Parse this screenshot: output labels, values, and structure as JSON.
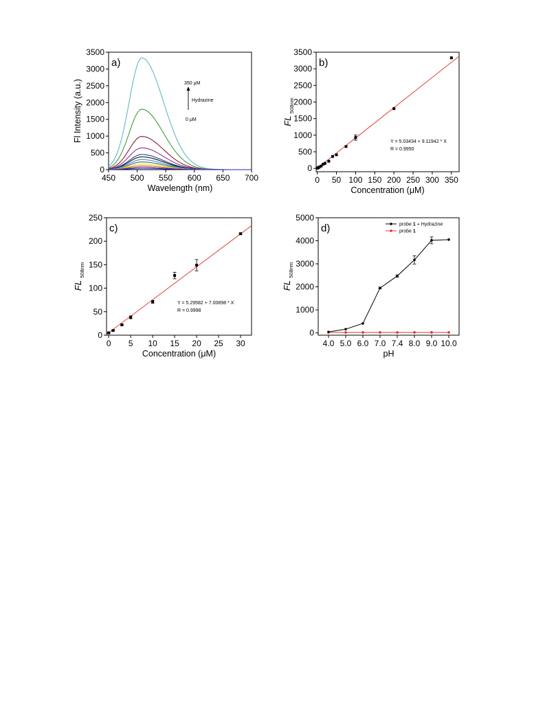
{
  "chart_data": [
    {
      "panel": "a)",
      "type": "line",
      "xlabel": "Wavelength (nm)",
      "ylabel": "Fl Intensity (a.u.)",
      "xlim": [
        450,
        700
      ],
      "ylim": [
        0,
        3500
      ],
      "xticks": [
        450,
        500,
        550,
        600,
        650,
        700
      ],
      "yticks": [
        0,
        500,
        1000,
        1500,
        2000,
        2500,
        3000,
        3500
      ],
      "series": [
        {
          "color": "#5fb8c4",
          "peak_x": 508,
          "peak_y": 3330
        },
        {
          "color": "#3d9a3d",
          "peak_x": 508,
          "peak_y": 1800
        },
        {
          "color": "#8b1a2e",
          "peak_x": 508,
          "peak_y": 990
        },
        {
          "color": "#8e2e8e",
          "peak_x": 508,
          "peak_y": 650
        },
        {
          "color": "#1f3f8a",
          "peak_x": 508,
          "peak_y": 450
        },
        {
          "color": "#111111",
          "peak_x": 508,
          "peak_y": 380
        },
        {
          "color": "#4a8ad4",
          "peak_x": 508,
          "peak_y": 300
        },
        {
          "color": "#2f6f6f",
          "peak_x": 508,
          "peak_y": 230
        },
        {
          "color": "#f0e020",
          "peak_x": 508,
          "peak_y": 170
        },
        {
          "color": "#e09020",
          "peak_x": 508,
          "peak_y": 120
        },
        {
          "color": "#7a3fb0",
          "peak_x": 508,
          "peak_y": 80
        },
        {
          "color": "#2020c0",
          "peak_x": 508,
          "peak_y": 40
        }
      ],
      "annotation": {
        "top": "350 μM",
        "middle": "Hydrazine",
        "bottom": "0 μM"
      }
    },
    {
      "panel": "b)",
      "type": "scatter",
      "xlabel": "Concentration (μM)",
      "ylabel_main": "FL",
      "ylabel_sub": "508nm",
      "xlim": [
        -3,
        370
      ],
      "ylim": [
        -100,
        3500
      ],
      "xticks": [
        0,
        50,
        100,
        150,
        200,
        250,
        300,
        350
      ],
      "yticks": [
        0,
        500,
        1000,
        1500,
        2000,
        2500,
        3000,
        3500
      ],
      "points": [
        {
          "x": 0,
          "y": 5,
          "err": 0
        },
        {
          "x": 1,
          "y": 12,
          "err": 0
        },
        {
          "x": 3,
          "y": 25,
          "err": 0
        },
        {
          "x": 5,
          "y": 40,
          "err": 0
        },
        {
          "x": 10,
          "y": 70,
          "err": 0
        },
        {
          "x": 15,
          "y": 125,
          "err": 0
        },
        {
          "x": 20,
          "y": 150,
          "err": 0
        },
        {
          "x": 30,
          "y": 215,
          "err": 0
        },
        {
          "x": 40,
          "y": 360,
          "err": 0
        },
        {
          "x": 50,
          "y": 410,
          "err": 0
        },
        {
          "x": 75,
          "y": 660,
          "err": 0
        },
        {
          "x": 100,
          "y": 930,
          "err": 80
        },
        {
          "x": 200,
          "y": 1800,
          "err": 0
        },
        {
          "x": 350,
          "y": 3330,
          "err": 0
        }
      ],
      "fit": {
        "intercept": 5.03434,
        "slope": 9.11942,
        "x_range": [
          0,
          370
        ],
        "color": "#e0423a"
      },
      "equation": "Y = 5.03434 + 9.11942 * X",
      "r_value": "R = 0.9950"
    },
    {
      "panel": "c)",
      "type": "scatter",
      "xlabel": "Concentration (μM)",
      "ylabel_main": "FL",
      "ylabel_sub": "508nm",
      "xlim": [
        -0.5,
        32.5
      ],
      "ylim": [
        0,
        250
      ],
      "xticks": [
        0,
        5,
        10,
        15,
        20,
        25,
        30
      ],
      "yticks": [
        0,
        50,
        100,
        150,
        200,
        250
      ],
      "points": [
        {
          "x": 0,
          "y": 5,
          "err": 1
        },
        {
          "x": 1,
          "y": 10,
          "err": 1
        },
        {
          "x": 3,
          "y": 22,
          "err": 1.5
        },
        {
          "x": 5,
          "y": 38,
          "err": 3
        },
        {
          "x": 10,
          "y": 71,
          "err": 3
        },
        {
          "x": 15,
          "y": 127,
          "err": 7
        },
        {
          "x": 20,
          "y": 149,
          "err": 12
        },
        {
          "x": 30,
          "y": 216,
          "err": 1.5
        }
      ],
      "fit": {
        "intercept": 5.29582,
        "slope": 7.00898,
        "x_range": [
          -0.5,
          32.5
        ],
        "color": "#e0423a"
      },
      "equation": "Y = 5.29582 + 7.00898 * X",
      "r_value": "R = 0.9998"
    },
    {
      "panel": "d)",
      "type": "line",
      "xlabel": "pH",
      "ylabel_main": "FL",
      "ylabel_sub": "508nm",
      "categories": [
        "4.0",
        "5.0",
        "6.0",
        "7.0",
        "7.4",
        "8.0",
        "9.0",
        "10.0"
      ],
      "ylim": [
        -100,
        5000
      ],
      "yticks": [
        0,
        1000,
        2000,
        3000,
        4000,
        5000
      ],
      "series": [
        {
          "name_main": "probe ",
          "name_bold": "1",
          "name_rest": " + Hydrazine",
          "color": "#000000",
          "values": [
            40,
            160,
            410,
            1950,
            2470,
            3170,
            4020,
            4050
          ],
          "errors": [
            0,
            0,
            0,
            40,
            50,
            180,
            150,
            0
          ]
        },
        {
          "name_main": "probe ",
          "name_bold": "1",
          "name_rest": "",
          "color": "#e0302a",
          "values": [
            20,
            20,
            20,
            20,
            20,
            20,
            20,
            20
          ],
          "errors": [
            0,
            0,
            0,
            0,
            0,
            0,
            0,
            0
          ]
        }
      ],
      "legend_position": "top-right"
    }
  ]
}
